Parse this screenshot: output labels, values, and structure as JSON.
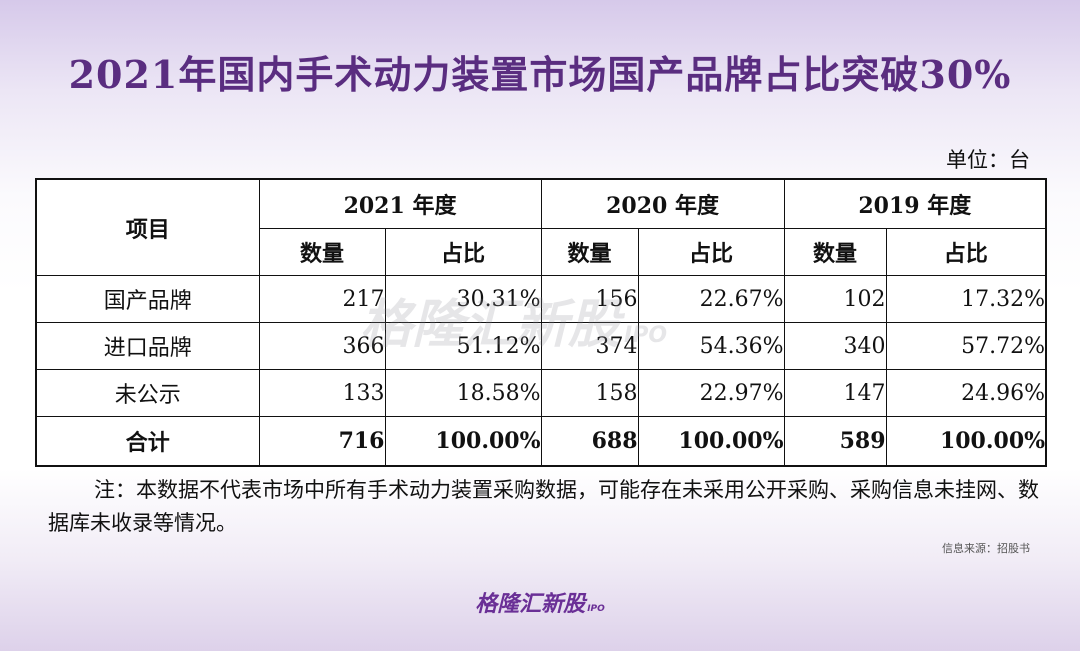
{
  "title": "2021年国内手术动力装置市场国产品牌占比突破30%",
  "unit": "单位：台",
  "chart_data": {
    "type": "table",
    "header": {
      "item": "项目",
      "years": [
        "2021 年度",
        "2020 年度",
        "2019 年度"
      ],
      "sub": [
        "数量",
        "占比",
        "数量",
        "占比",
        "数量",
        "占比"
      ]
    },
    "rows": [
      {
        "label": "国产品牌",
        "values": [
          "217",
          "30.31%",
          "156",
          "22.67%",
          "102",
          "17.32%"
        ]
      },
      {
        "label": "进口品牌",
        "values": [
          "366",
          "51.12%",
          "374",
          "54.36%",
          "340",
          "57.72%"
        ]
      },
      {
        "label": "未公示",
        "values": [
          "133",
          "18.58%",
          "158",
          "22.97%",
          "147",
          "24.96%"
        ]
      }
    ],
    "total": {
      "label": "合计",
      "values": [
        "716",
        "100.00%",
        "688",
        "100.00%",
        "589",
        "100.00%"
      ]
    }
  },
  "note": "注：本数据不代表市场中所有手术动力装置采购数据，可能存在未采用公开采购、采购信息未挂网、数据库未收录等情况。",
  "source": "信息来源：招股书",
  "watermark": {
    "text": "格隆汇新股",
    "ipo": "IPO"
  },
  "logo": {
    "text": "格隆汇新股",
    "ipo": "IPO"
  },
  "colors": {
    "title": "#5a2d80",
    "logo": "#6a2f96"
  }
}
